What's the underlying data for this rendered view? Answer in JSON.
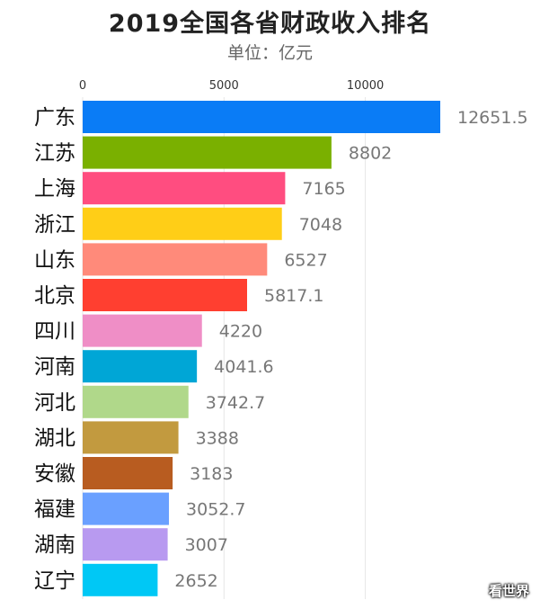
{
  "chart_data": {
    "type": "bar",
    "orientation": "horizontal",
    "title": "2019全国各省财政收入排名",
    "subtitle": "单位：亿元",
    "xlim": [
      0,
      12651.5
    ],
    "xticks": [
      0,
      5000,
      10000
    ],
    "grid": true,
    "categories": [
      "广东",
      "江苏",
      "上海",
      "浙江",
      "山东",
      "北京",
      "四川",
      "河南",
      "河北",
      "湖北",
      "安徽",
      "福建",
      "湖南",
      "辽宁"
    ],
    "values": [
      12651.5,
      8802,
      7165,
      7048,
      6527,
      5817.1,
      4220,
      4041.6,
      3742.7,
      3388,
      3183,
      3052.7,
      3007,
      2652
    ],
    "value_labels": [
      "12651.5",
      "8802",
      "7165",
      "7048",
      "6527",
      "5817.1",
      "4220",
      "4041.6",
      "3742.7",
      "3388",
      "3183",
      "3052.7",
      "3007",
      "2652"
    ],
    "colors": [
      "#0a7cf6",
      "#7ab000",
      "#ff4d80",
      "#ffce17",
      "#ff8a7a",
      "#ff3f30",
      "#ef8ec6",
      "#00a6d6",
      "#b0d88a",
      "#c29a3f",
      "#b85c20",
      "#6aa0ff",
      "#b89af0",
      "#00c8f5"
    ]
  },
  "watermark": "看世界"
}
